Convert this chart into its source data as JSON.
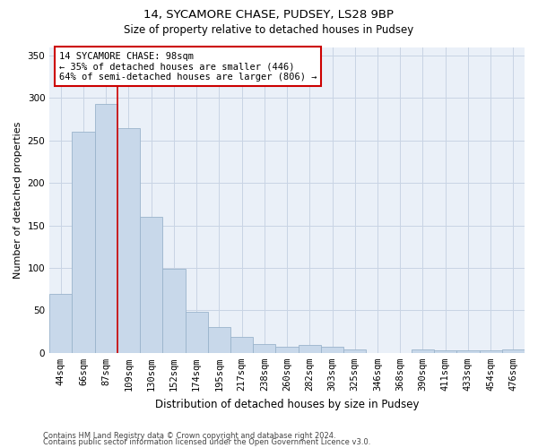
{
  "title1": "14, SYCAMORE CHASE, PUDSEY, LS28 9BP",
  "title2": "Size of property relative to detached houses in Pudsey",
  "xlabel": "Distribution of detached houses by size in Pudsey",
  "ylabel": "Number of detached properties",
  "footer1": "Contains HM Land Registry data © Crown copyright and database right 2024.",
  "footer2": "Contains public sector information licensed under the Open Government Licence v3.0.",
  "categories": [
    "44sqm",
    "66sqm",
    "87sqm",
    "109sqm",
    "130sqm",
    "152sqm",
    "174sqm",
    "195sqm",
    "217sqm",
    "238sqm",
    "260sqm",
    "282sqm",
    "303sqm",
    "325sqm",
    "346sqm",
    "368sqm",
    "390sqm",
    "411sqm",
    "433sqm",
    "454sqm",
    "476sqm"
  ],
  "values": [
    69,
    260,
    293,
    265,
    160,
    99,
    48,
    30,
    19,
    10,
    7,
    9,
    7,
    4,
    0,
    0,
    4,
    3,
    3,
    3,
    4
  ],
  "bar_color": "#c8d8ea",
  "bar_edge_color": "#9ab4cc",
  "bar_width": 1.0,
  "grid_color": "#c8d4e4",
  "bg_color": "#eaf0f8",
  "property_line_color": "#cc0000",
  "property_line_xindex": 2.5,
  "annotation_text": "14 SYCAMORE CHASE: 98sqm\n← 35% of detached houses are smaller (446)\n64% of semi-detached houses are larger (806) →",
  "ylim": [
    0,
    360
  ],
  "yticks": [
    0,
    50,
    100,
    150,
    200,
    250,
    300,
    350
  ],
  "title1_fontsize": 9.5,
  "title2_fontsize": 8.5,
  "xlabel_fontsize": 8.5,
  "ylabel_fontsize": 8.0,
  "tick_fontsize": 7.5,
  "footer_fontsize": 6.0
}
